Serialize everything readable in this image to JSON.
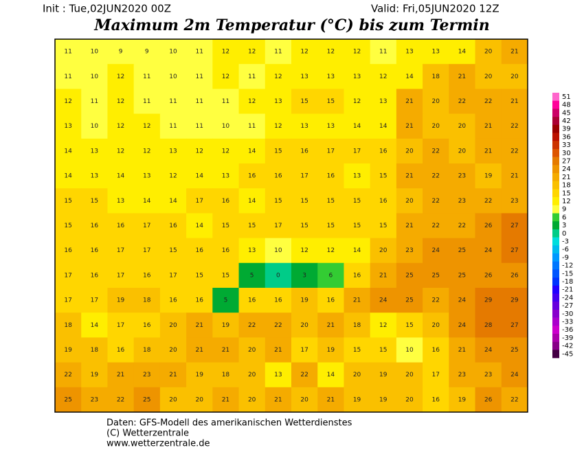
{
  "header": {
    "init": "Init : Tue,02JUN2020 00Z",
    "valid": "Valid: Fri,05JUN2020 12Z",
    "title": "Maximum 2m Temperatur (°C) bis zum Termin"
  },
  "map": {
    "rows": [
      [
        11,
        10,
        9,
        9,
        10,
        11,
        12,
        12,
        11,
        12,
        12,
        12,
        11,
        13,
        13,
        14,
        20,
        21
      ],
      [
        11,
        10,
        12,
        11,
        10,
        11,
        12,
        11,
        12,
        13,
        13,
        13,
        12,
        14,
        18,
        21,
        20,
        20
      ],
      [
        12,
        11,
        12,
        11,
        11,
        11,
        11,
        12,
        13,
        15,
        15,
        12,
        13,
        21,
        20,
        22,
        22,
        21
      ],
      [
        13,
        10,
        12,
        12,
        11,
        11,
        10,
        11,
        12,
        13,
        13,
        14,
        14,
        21,
        20,
        20,
        21,
        22
      ],
      [
        14,
        13,
        12,
        12,
        13,
        12,
        12,
        14,
        15,
        16,
        17,
        17,
        16,
        20,
        22,
        20,
        21,
        22
      ],
      [
        14,
        13,
        14,
        13,
        12,
        14,
        13,
        16,
        16,
        17,
        16,
        13,
        15,
        21,
        22,
        23,
        19,
        21
      ],
      [
        15,
        15,
        13,
        14,
        14,
        17,
        16,
        14,
        15,
        15,
        15,
        15,
        16,
        20,
        22,
        23,
        22,
        23
      ],
      [
        15,
        16,
        16,
        17,
        16,
        14,
        15,
        15,
        17,
        15,
        15,
        15,
        15,
        21,
        22,
        22,
        26,
        27
      ],
      [
        16,
        16,
        17,
        17,
        15,
        16,
        16,
        13,
        10,
        12,
        12,
        14,
        20,
        23,
        24,
        25,
        24,
        27
      ],
      [
        17,
        16,
        17,
        16,
        17,
        15,
        15,
        5,
        0,
        3,
        6,
        16,
        21,
        25,
        25,
        25,
        26,
        26
      ],
      [
        17,
        17,
        19,
        18,
        16,
        16,
        5,
        16,
        16,
        19,
        16,
        21,
        24,
        25,
        22,
        24,
        29,
        29
      ],
      [
        18,
        14,
        17,
        16,
        20,
        21,
        19,
        22,
        22,
        20,
        21,
        18,
        12,
        15,
        20,
        24,
        28,
        27
      ],
      [
        19,
        18,
        16,
        18,
        20,
        21,
        21,
        20,
        21,
        17,
        19,
        15,
        15,
        10,
        16,
        21,
        24,
        25
      ],
      [
        22,
        19,
        21,
        23,
        21,
        19,
        18,
        20,
        13,
        22,
        14,
        20,
        19,
        20,
        17,
        23,
        23,
        24
      ],
      [
        25,
        23,
        22,
        25,
        20,
        20,
        21,
        20,
        21,
        20,
        21,
        19,
        19,
        20,
        16,
        19,
        26,
        22
      ]
    ]
  },
  "colorbar": {
    "levels": [
      51,
      48,
      45,
      42,
      39,
      36,
      33,
      30,
      27,
      24,
      21,
      18,
      15,
      12,
      9,
      6,
      3,
      0,
      -3,
      -6,
      -9,
      -12,
      -15,
      -18,
      -21,
      -24,
      -27,
      -30,
      -33,
      -36,
      -39,
      -42,
      -45
    ],
    "colors": [
      "#ff66cc",
      "#ff0099",
      "#cc0066",
      "#aa0033",
      "#990000",
      "#bb1100",
      "#cc3300",
      "#dd5500",
      "#e57a00",
      "#ee9400",
      "#f5ab00",
      "#fac000",
      "#ffd600",
      "#ffee00",
      "#ffff40",
      "#33cc33",
      "#00aa33",
      "#00cc88",
      "#00dddd",
      "#00bbee",
      "#0099ff",
      "#0077ff",
      "#0055ff",
      "#0033ff",
      "#2200ff",
      "#4400ee",
      "#6600dd",
      "#8800cc",
      "#aa00cc",
      "#cc00cc",
      "#aa00aa",
      "#880088",
      "#440044"
    ]
  },
  "footer": {
    "line1": "Daten: GFS-Modell des amerikanischen Wetterdienstes",
    "line2": "(C) Wetterzentrale",
    "line3": "www.wetterzentrale.de"
  }
}
